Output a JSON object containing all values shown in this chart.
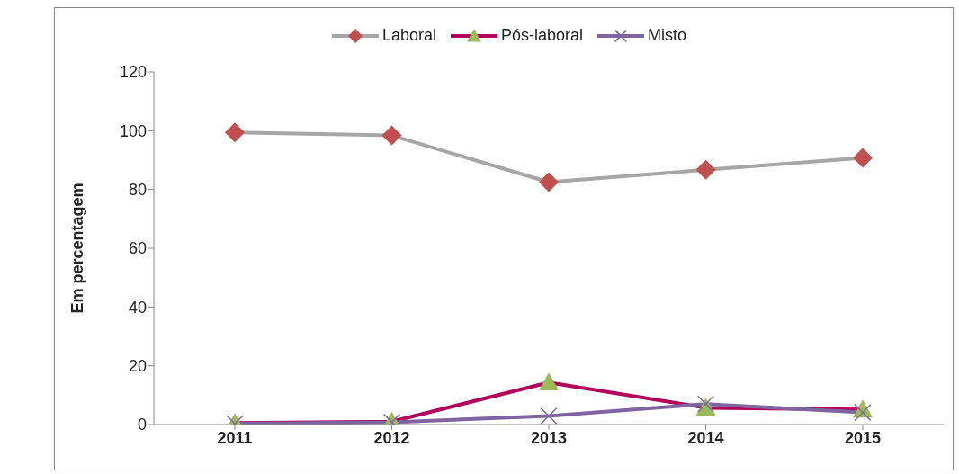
{
  "chart_data": {
    "type": "line",
    "ylabel": "Em percentagem",
    "categories": [
      "2011",
      "2012",
      "2013",
      "2014",
      "2015"
    ],
    "ylim": [
      0,
      120
    ],
    "yticks": [
      0,
      20,
      40,
      60,
      80,
      100,
      120
    ],
    "grid": false,
    "legend": "top",
    "series": [
      {
        "name": "Laboral",
        "color": "#a6a6a6",
        "marker": "diamond",
        "colors": [
          "#c0504d",
          "#c0504d",
          "#c0504d",
          "#c0504d",
          "#c0504d"
        ],
        "values": [
          99.4,
          98.4,
          82.5,
          86.7,
          90.8
        ]
      },
      {
        "name": "Pós-laboral",
        "color": "#b3005a",
        "marker": "triangle",
        "colors": [
          "#9bbb59",
          "#9bbb59",
          "#9bbb59",
          "#9bbb59",
          "#9bbb59"
        ],
        "values": [
          0.5,
          1,
          14.3,
          5.7,
          5.1
        ]
      },
      {
        "name": "Misto",
        "color": "#8064a2",
        "marker": "cross",
        "colors": [
          "#8064a2",
          "#8064a2",
          "#8064a2",
          "#8064a2",
          "#8064a2"
        ],
        "values": [
          0.3,
          0.8,
          2.9,
          7,
          4.1
        ]
      }
    ]
  }
}
